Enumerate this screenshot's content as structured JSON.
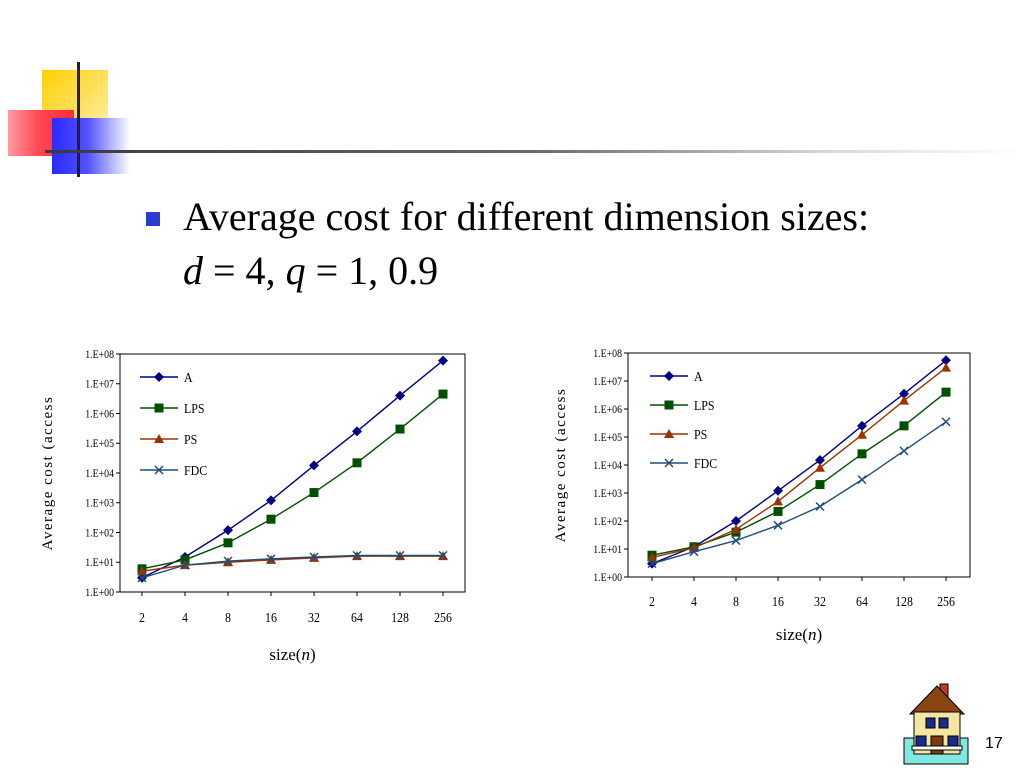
{
  "slide": {
    "bullet_line1": "Average cost for different dimension sizes:",
    "bullet_line2": {
      "d_var": "d",
      "d_eq": " = 4, ",
      "q_var": "q",
      "q_eq": " = 1, 0.9"
    },
    "page_number": "17",
    "icons": {
      "bullet": "square-bullet-icon",
      "home": "house-icon"
    },
    "colors": {
      "bullet": "#2a3dcc",
      "series_A": "#000080",
      "series_LPS": "#005000",
      "series_PS": "#993300",
      "series_FDC": "#1f4e79"
    }
  },
  "chart_data": [
    {
      "type": "line",
      "title": "",
      "subtitle": "",
      "ylabel": "Average cost (access",
      "xlabel": {
        "text": "size(",
        "var": "n",
        "close": ")"
      },
      "x": [
        "2",
        "4",
        "8",
        "16",
        "32",
        "64",
        "128",
        "256"
      ],
      "yscale": "log",
      "ylim": [
        1,
        100000000
      ],
      "yticks": [
        "1.E+00",
        "1.E+01",
        "1.E+02",
        "1.E+03",
        "1.E+04",
        "1.E+05",
        "1.E+06",
        "1.E+07",
        "1.E+08"
      ],
      "grid": false,
      "legend": "top-left",
      "series": [
        {
          "name": "A",
          "marker": "diamond",
          "color": "#000080",
          "values": [
            3,
            15,
            120,
            1200,
            18000,
            250000,
            4000000,
            60000000
          ]
        },
        {
          "name": "LPS",
          "marker": "square",
          "color": "#005000",
          "values": [
            6,
            12,
            45,
            280,
            2200,
            22000,
            300000,
            4500000
          ]
        },
        {
          "name": "PS",
          "marker": "triangle",
          "color": "#993300",
          "values": [
            5,
            8,
            10,
            12,
            14,
            16,
            16,
            16
          ]
        },
        {
          "name": "FDC",
          "marker": "x",
          "color": "#1f4e79",
          "values": [
            3,
            8,
            11,
            13,
            15,
            17,
            17,
            17
          ]
        }
      ]
    },
    {
      "type": "line",
      "title": "",
      "subtitle": "",
      "ylabel": "Average cost (access",
      "xlabel": {
        "text": "size(",
        "var": "n",
        "close": ")"
      },
      "x": [
        "2",
        "4",
        "8",
        "16",
        "32",
        "64",
        "128",
        "256"
      ],
      "yscale": "log",
      "ylim": [
        1,
        100000000
      ],
      "yticks": [
        "1.E+00",
        "1.E+01",
        "1.E+02",
        "1.E+03",
        "1.E+04",
        "1.E+05",
        "1.E+06",
        "1.E+07",
        "1.E+08"
      ],
      "grid": false,
      "legend": "top-left",
      "series": [
        {
          "name": "A",
          "marker": "diamond",
          "color": "#000080",
          "values": [
            3,
            12,
            100,
            1200,
            15000,
            250000,
            3500000,
            55000000
          ]
        },
        {
          "name": "LPS",
          "marker": "square",
          "color": "#005000",
          "values": [
            6,
            12,
            40,
            220,
            2000,
            25000,
            250000,
            4000000
          ]
        },
        {
          "name": "PS",
          "marker": "triangle",
          "color": "#993300",
          "values": [
            5,
            11,
            50,
            500,
            8000,
            120000,
            2000000,
            30000000
          ]
        },
        {
          "name": "FDC",
          "marker": "x",
          "color": "#1f4e79",
          "values": [
            3,
            8,
            20,
            70,
            330,
            3000,
            32000,
            350000
          ]
        }
      ]
    }
  ]
}
